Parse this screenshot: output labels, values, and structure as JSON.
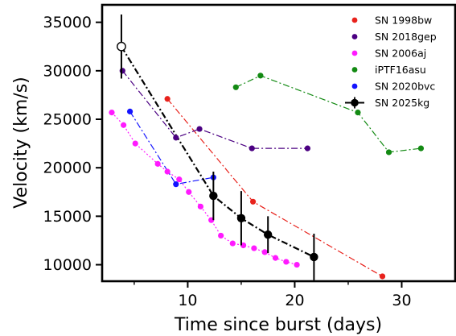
{
  "chart_data": {
    "type": "scatter",
    "title": "",
    "xlabel": "Time since burst (days)",
    "ylabel": "Velocity (km/s)",
    "xlim": [
      2,
      35
    ],
    "ylim": [
      8300,
      36800
    ],
    "xticks": [
      10,
      20,
      30
    ],
    "xtick_labels": [
      "10",
      "20",
      "30"
    ],
    "yticks": [
      10000,
      15000,
      20000,
      25000,
      30000,
      35000
    ],
    "ytick_labels": [
      "10000",
      "15000",
      "20000",
      "25000",
      "30000",
      "35000"
    ],
    "grid": false,
    "legend_position": "top-right",
    "series": [
      {
        "name": "SN 1998bw",
        "color": "#e8221c",
        "line": "dashdot",
        "marker": "circle",
        "x": [
          8.1,
          16.1,
          28.2
        ],
        "y": [
          27100,
          16500,
          8800
        ]
      },
      {
        "name": "SN 2018gep",
        "color": "#4b0082",
        "line": "dashdot",
        "marker": "circle",
        "x": [
          3.9,
          8.9,
          11.1,
          16.0,
          21.2
        ],
        "y": [
          30000,
          23100,
          24000,
          22000,
          22000
        ]
      },
      {
        "name": "SN 2006aj",
        "color": "#ff1aff",
        "line": "dotted",
        "marker": "circle",
        "x": [
          2.9,
          4.0,
          5.1,
          7.2,
          8.1,
          9.2,
          10.1,
          11.2,
          12.2,
          13.1,
          14.2,
          15.2,
          16.2,
          17.2,
          18.2,
          19.2,
          20.2
        ],
        "y": [
          25700,
          24400,
          22500,
          20400,
          19600,
          18800,
          17500,
          16000,
          14600,
          13000,
          12200,
          12000,
          11700,
          11300,
          10700,
          10300,
          10000
        ]
      },
      {
        "name": "iPTF16asu",
        "color": "#138a13",
        "line": "dashdot",
        "marker": "circle",
        "x": [
          14.5,
          16.8,
          25.9,
          28.8,
          31.8
        ],
        "y": [
          28300,
          29500,
          25700,
          21600,
          22000
        ]
      },
      {
        "name": "SN 2020bvc",
        "color": "#1414ff",
        "line": "dashdot",
        "marker": "circle",
        "x": [
          4.6,
          8.9,
          12.4
        ],
        "y": [
          25800,
          18300,
          19000
        ]
      },
      {
        "name": "SN 2025kg",
        "color": "#000000",
        "line": "dashdot",
        "marker": "circle",
        "x": [
          3.8,
          12.4,
          15.0,
          17.5,
          21.8
        ],
        "y": [
          32500,
          17100,
          14800,
          13100,
          10800
        ],
        "yerr": [
          3300,
          2500,
          2800,
          1900,
          2400
        ],
        "open_markers": [
          0
        ]
      }
    ]
  }
}
